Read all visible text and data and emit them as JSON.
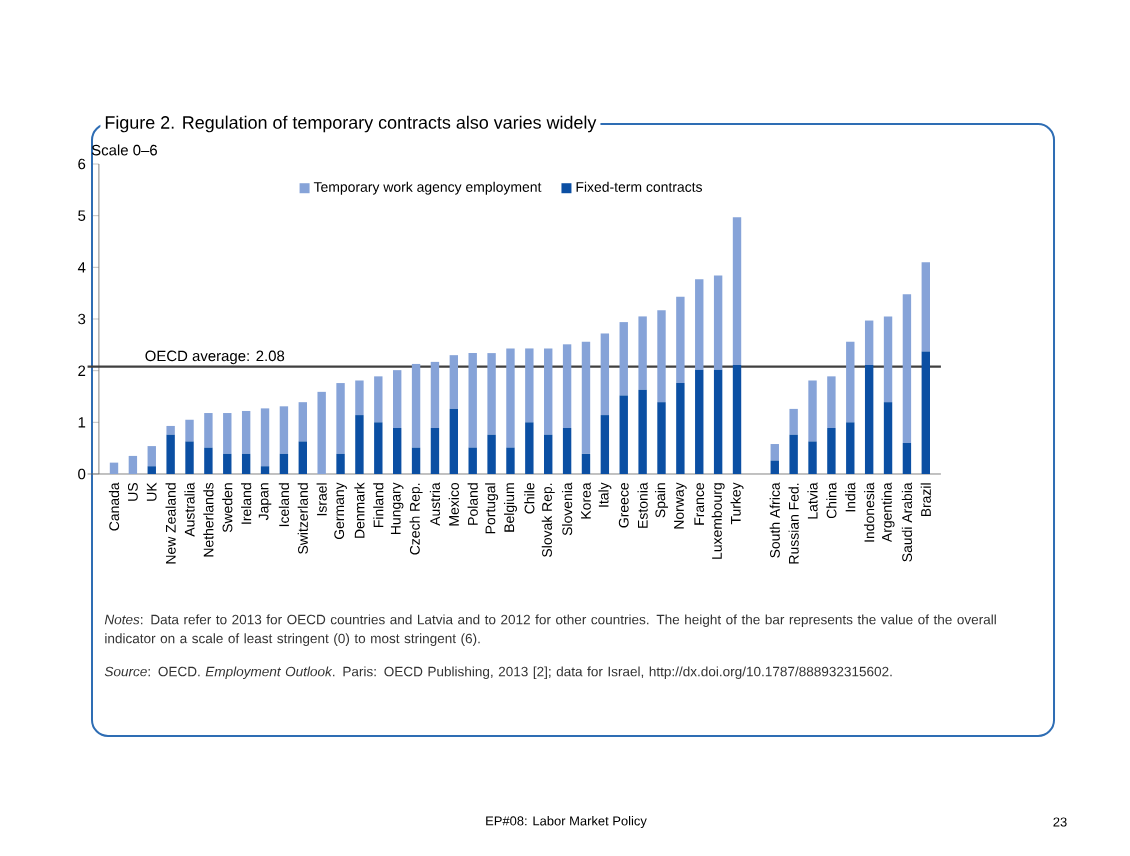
{
  "chart_data": {
    "type": "bar",
    "stacked": true,
    "title": "Figure 2. Regulation of temporary contracts also varies widely",
    "ylabel": "Scale 0–6",
    "categories": [
      "Canada",
      "US",
      "UK",
      "New Zealand",
      "Australia",
      "Netherlands",
      "Sweden",
      "Ireland",
      "Japan",
      "Iceland",
      "Switzerland",
      "Israel",
      "Germany",
      "Denmark",
      "Finland",
      "Hungary",
      "Czech Rep.",
      "Austria",
      "Mexico",
      "Poland",
      "Portugal",
      "Belgium",
      "Chile",
      "Slovak Rep.",
      "Slovenia",
      "Korea",
      "Italy",
      "Greece",
      "Estonia",
      "Spain",
      "Norway",
      "France",
      "Luxembourg",
      "Turkey",
      null,
      "South Africa",
      "Russian Fed.",
      "Latvia",
      "China",
      "India",
      "Indonesia",
      "Argentina",
      "Saudi Arabia",
      "Brazil"
    ],
    "series": [
      {
        "name": "Fixed-term contracts",
        "color": "#0b4fa3",
        "values": [
          0,
          0,
          0.15,
          0.76,
          0.63,
          0.51,
          0.39,
          0.39,
          0.15,
          0.39,
          0.63,
          0,
          0.39,
          1.14,
          1.0,
          0.89,
          0.51,
          0.89,
          1.26,
          0.51,
          0.76,
          0.51,
          1.0,
          0.76,
          0.89,
          0.39,
          1.14,
          1.52,
          1.63,
          1.39,
          1.76,
          2.02,
          2.02,
          2.11,
          null,
          0.26,
          0.76,
          0.63,
          0.89,
          1.0,
          2.11,
          1.39,
          0.6,
          2.37
        ]
      },
      {
        "name": "Temporary work agency employment",
        "color": "#86a3d8",
        "values": [
          0.22,
          0.35,
          0.39,
          0.17,
          0.42,
          0.67,
          0.79,
          0.83,
          1.12,
          0.92,
          0.76,
          1.59,
          1.37,
          0.67,
          0.89,
          1.12,
          1.62,
          1.28,
          1.04,
          1.83,
          1.58,
          1.92,
          1.43,
          1.67,
          1.62,
          2.17,
          1.58,
          1.42,
          1.42,
          1.78,
          1.67,
          1.75,
          1.82,
          2.86,
          null,
          0.32,
          0.5,
          1.18,
          1.0,
          1.56,
          0.86,
          1.66,
          2.88,
          1.73
        ]
      }
    ],
    "ylim": [
      0,
      6
    ],
    "yticks": [
      0,
      1,
      2,
      3,
      4,
      5,
      6
    ],
    "legend": "top",
    "ref_lines": [
      {
        "axis": "y",
        "value": 2.08,
        "label": "OECD average: 2.08",
        "color": "#404040"
      }
    ],
    "annotations": [
      "*Notes*: Data refer to 2013 for OECD countries and Latvia and to 2012 for other countries. The height of the bar represents the value of the overall indicator on a scale of least stringent (0) to most stringent (6).",
      "*Source*: OECD. *Employment Outlook*. Paris: OECD Publishing, 2013 [2]; data for Israel, http://dx.doi.org/10.1787/888932315602.",
      "EP#08: Labor Market Policy",
      "23"
    ]
  }
}
